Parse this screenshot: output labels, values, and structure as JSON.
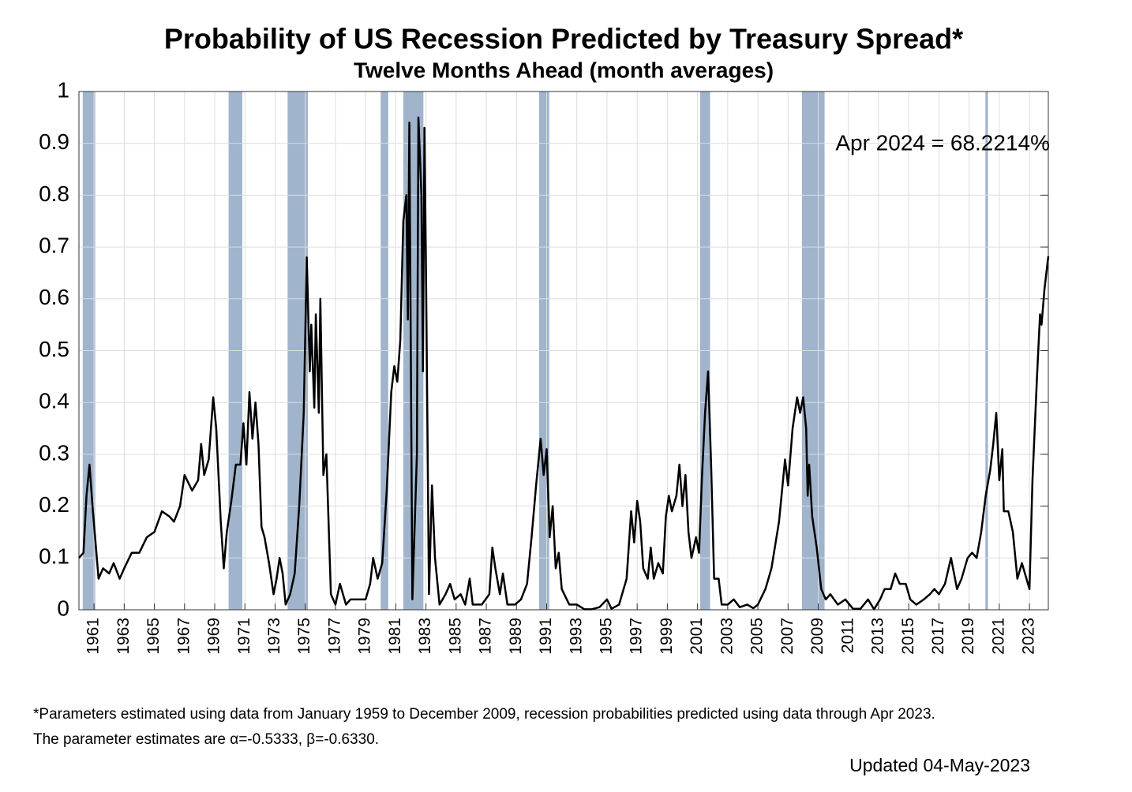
{
  "chart_data": {
    "type": "line",
    "title": "Probability of US Recession Predicted by Treasury Spread*",
    "subtitle": "Twelve Months Ahead (month averages)",
    "annotation": "Apr 2024 = 68.2214%",
    "footnotes": [
      "*Parameters estimated using data from January 1959 to December 2009, recession probabilities predicted using data through Apr 2023.",
      "The parameter estimates are α=-0.5333, β=-0.6330."
    ],
    "updated": "Updated 04-May-2023",
    "xlim": [
      1960,
      2024.25
    ],
    "ylim": [
      0,
      1
    ],
    "xticks": [
      1961,
      1963,
      1965,
      1967,
      1969,
      1971,
      1973,
      1975,
      1977,
      1979,
      1981,
      1983,
      1985,
      1987,
      1989,
      1991,
      1993,
      1995,
      1997,
      1999,
      2001,
      2003,
      2005,
      2007,
      2009,
      2011,
      2013,
      2015,
      2017,
      2019,
      2021,
      2023
    ],
    "yticks": [
      0,
      0.1,
      0.2,
      0.3,
      0.4,
      0.5,
      0.6,
      0.7,
      0.8,
      0.9,
      1
    ],
    "grid": true,
    "recession_color": "#a0b4cc",
    "recessions": [
      {
        "start": 1960.25,
        "end": 1961.08
      },
      {
        "start": 1969.92,
        "end": 1970.83
      },
      {
        "start": 1973.83,
        "end": 1975.17
      },
      {
        "start": 1980.0,
        "end": 1980.5
      },
      {
        "start": 1981.5,
        "end": 1982.83
      },
      {
        "start": 1990.5,
        "end": 1991.17
      },
      {
        "start": 2001.17,
        "end": 2001.83
      },
      {
        "start": 2007.92,
        "end": 2009.42
      },
      {
        "start": 2020.08,
        "end": 2020.25
      }
    ],
    "series": [
      {
        "color": "#000000",
        "x": [
          1960.0,
          1960.3,
          1960.5,
          1960.7,
          1960.9,
          1961.1,
          1961.3,
          1961.6,
          1962.0,
          1962.3,
          1962.7,
          1963.0,
          1963.5,
          1964.0,
          1964.5,
          1965.0,
          1965.5,
          1966.0,
          1966.3,
          1966.7,
          1967.0,
          1967.5,
          1967.9,
          1968.1,
          1968.3,
          1968.6,
          1968.9,
          1969.1,
          1969.4,
          1969.6,
          1969.8,
          1970.1,
          1970.4,
          1970.7,
          1970.9,
          1971.1,
          1971.3,
          1971.5,
          1971.7,
          1971.9,
          1972.1,
          1972.3,
          1972.6,
          1972.9,
          1973.1,
          1973.3,
          1973.5,
          1973.7,
          1974.0,
          1974.3,
          1974.6,
          1974.9,
          1975.1,
          1975.3,
          1975.4,
          1975.6,
          1975.7,
          1975.9,
          1976.0,
          1976.2,
          1976.4,
          1976.7,
          1977.0,
          1977.3,
          1977.7,
          1978.0,
          1978.5,
          1979.0,
          1979.3,
          1979.5,
          1979.8,
          1980.1,
          1980.4,
          1980.7,
          1980.9,
          1981.1,
          1981.3,
          1981.5,
          1981.7,
          1981.8,
          1981.9,
          1982.1,
          1982.4,
          1982.5,
          1982.7,
          1982.8,
          1982.9,
          1983.0,
          1983.2,
          1983.4,
          1983.6,
          1983.9,
          1984.3,
          1984.6,
          1984.9,
          1985.3,
          1985.6,
          1985.9,
          1986.1,
          1986.7,
          1987.2,
          1987.4,
          1987.6,
          1987.9,
          1988.1,
          1988.4,
          1988.9,
          1989.3,
          1989.7,
          1990.0,
          1990.3,
          1990.6,
          1990.8,
          1991.0,
          1991.2,
          1991.4,
          1991.6,
          1991.8,
          1992.0,
          1992.5,
          1993.0,
          1993.5,
          1994.0,
          1994.5,
          1995.0,
          1995.3,
          1995.8,
          1996.3,
          1996.6,
          1996.8,
          1997.0,
          1997.2,
          1997.4,
          1997.7,
          1997.9,
          1998.1,
          1998.4,
          1998.7,
          1998.9,
          1999.1,
          1999.3,
          1999.6,
          1999.8,
          2000.0,
          2000.2,
          2000.4,
          2000.6,
          2000.9,
          2001.1,
          2001.3,
          2001.5,
          2001.7,
          2001.9,
          2002.1,
          2002.4,
          2002.6,
          2003.0,
          2003.4,
          2003.8,
          2004.3,
          2004.7,
          2005.0,
          2005.5,
          2005.9,
          2006.4,
          2006.8,
          2007.0,
          2007.3,
          2007.6,
          2007.8,
          2008.0,
          2008.2,
          2008.3,
          2008.4,
          2008.6,
          2008.9,
          2009.2,
          2009.5,
          2009.8,
          2010.3,
          2010.8,
          2011.3,
          2011.8,
          2012.3,
          2012.7,
          2013.1,
          2013.4,
          2013.8,
          2014.1,
          2014.4,
          2014.8,
          2015.1,
          2015.5,
          2016.0,
          2016.4,
          2016.7,
          2017.0,
          2017.4,
          2017.8,
          2018.2,
          2018.5,
          2018.9,
          2019.2,
          2019.5,
          2019.8,
          2020.1,
          2020.4,
          2020.6,
          2020.8,
          2021.0,
          2021.2,
          2021.3,
          2021.6,
          2021.9,
          2022.2,
          2022.5,
          2022.8,
          2023.0,
          2023.2,
          2023.5,
          2023.7,
          2023.8,
          2024.0,
          2024.25
        ],
        "values": [
          0.1,
          0.11,
          0.22,
          0.28,
          0.2,
          0.13,
          0.06,
          0.08,
          0.07,
          0.09,
          0.06,
          0.08,
          0.11,
          0.11,
          0.14,
          0.15,
          0.19,
          0.18,
          0.17,
          0.2,
          0.26,
          0.23,
          0.25,
          0.32,
          0.26,
          0.29,
          0.41,
          0.35,
          0.17,
          0.08,
          0.15,
          0.21,
          0.28,
          0.28,
          0.36,
          0.28,
          0.42,
          0.33,
          0.4,
          0.32,
          0.16,
          0.14,
          0.09,
          0.03,
          0.06,
          0.1,
          0.07,
          0.01,
          0.03,
          0.07,
          0.2,
          0.38,
          0.68,
          0.46,
          0.55,
          0.39,
          0.57,
          0.38,
          0.6,
          0.26,
          0.3,
          0.03,
          0.01,
          0.05,
          0.01,
          0.02,
          0.02,
          0.02,
          0.05,
          0.1,
          0.06,
          0.09,
          0.23,
          0.42,
          0.47,
          0.44,
          0.52,
          0.75,
          0.8,
          0.56,
          0.94,
          0.02,
          0.3,
          0.95,
          0.8,
          0.46,
          0.93,
          0.66,
          0.03,
          0.24,
          0.1,
          0.01,
          0.03,
          0.05,
          0.02,
          0.03,
          0.01,
          0.06,
          0.01,
          0.01,
          0.03,
          0.12,
          0.08,
          0.03,
          0.07,
          0.01,
          0.01,
          0.02,
          0.05,
          0.14,
          0.24,
          0.33,
          0.26,
          0.31,
          0.14,
          0.2,
          0.08,
          0.11,
          0.04,
          0.01,
          0.01,
          0.001,
          0.001,
          0.005,
          0.02,
          0.002,
          0.01,
          0.06,
          0.19,
          0.13,
          0.21,
          0.17,
          0.08,
          0.06,
          0.12,
          0.06,
          0.09,
          0.07,
          0.18,
          0.22,
          0.19,
          0.22,
          0.28,
          0.2,
          0.26,
          0.15,
          0.1,
          0.14,
          0.11,
          0.26,
          0.38,
          0.46,
          0.28,
          0.06,
          0.06,
          0.01,
          0.01,
          0.02,
          0.005,
          0.01,
          0.003,
          0.01,
          0.04,
          0.08,
          0.17,
          0.29,
          0.24,
          0.35,
          0.41,
          0.38,
          0.41,
          0.35,
          0.22,
          0.28,
          0.18,
          0.12,
          0.04,
          0.02,
          0.03,
          0.01,
          0.02,
          0.002,
          0.002,
          0.02,
          0.001,
          0.02,
          0.04,
          0.04,
          0.07,
          0.05,
          0.05,
          0.02,
          0.01,
          0.02,
          0.03,
          0.04,
          0.03,
          0.05,
          0.1,
          0.04,
          0.06,
          0.1,
          0.11,
          0.1,
          0.15,
          0.22,
          0.27,
          0.32,
          0.38,
          0.25,
          0.31,
          0.19,
          0.19,
          0.15,
          0.06,
          0.09,
          0.06,
          0.04,
          0.25,
          0.45,
          0.57,
          0.55,
          0.62,
          0.682214
        ]
      }
    ]
  }
}
